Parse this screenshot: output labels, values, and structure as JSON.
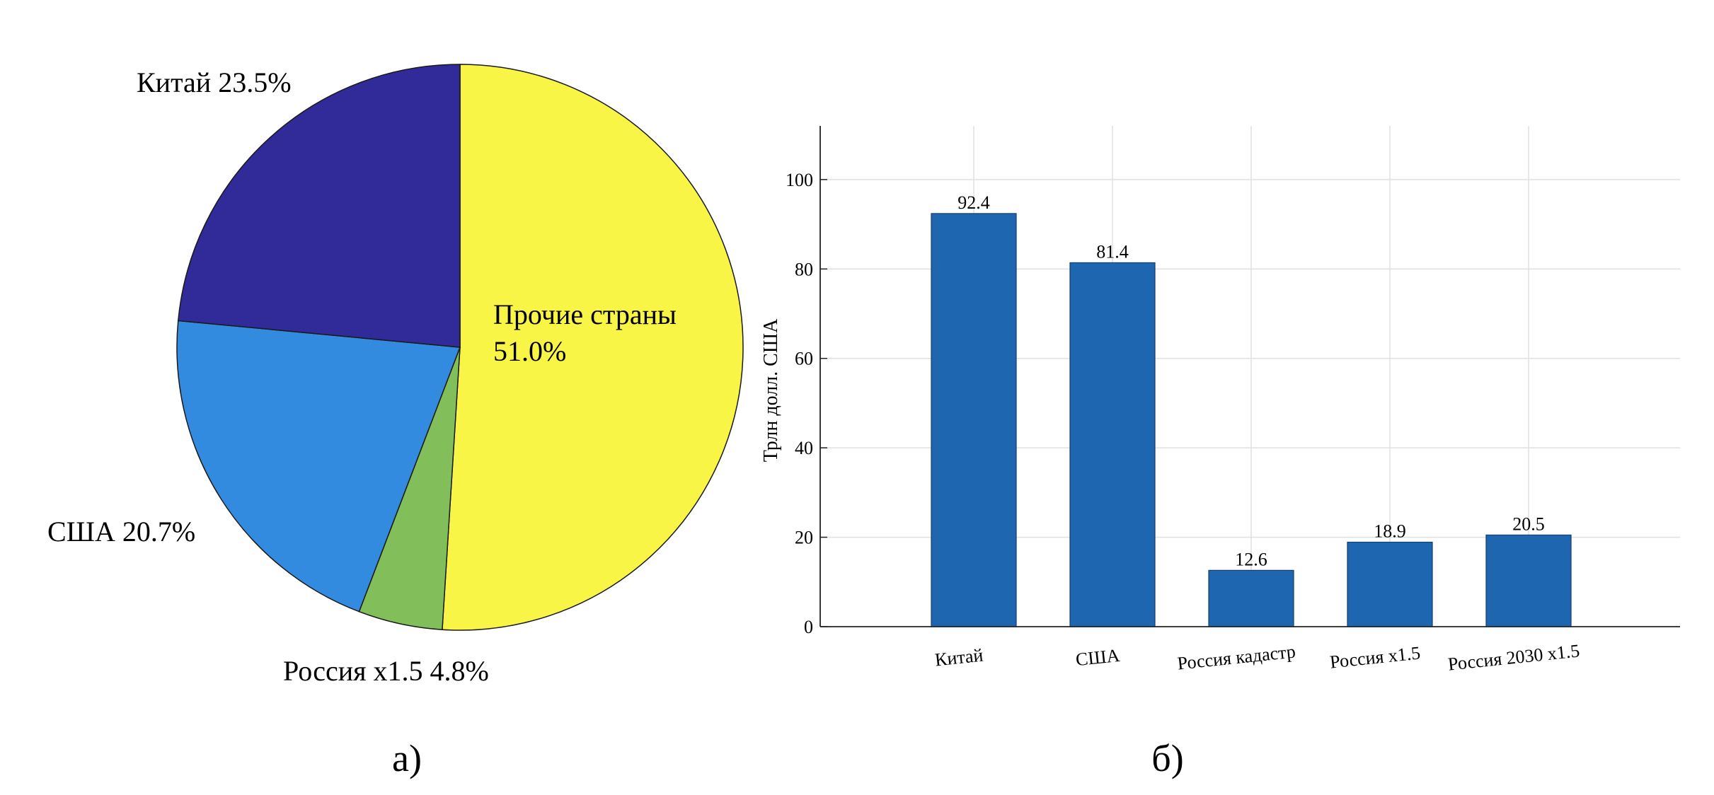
{
  "chart_data": [
    {
      "type": "pie",
      "panel_label": "а)",
      "slices": [
        {
          "label": "Прочие страны",
          "value": 51.0,
          "percent_text": "51.0%",
          "color": "#F8F547"
        },
        {
          "label": "Россия x1.5",
          "value": 4.8,
          "percent_text": "4.8%",
          "color": "#82BF5A"
        },
        {
          "label": "США",
          "value": 20.7,
          "percent_text": "20.7%",
          "color": "#338BE0"
        },
        {
          "label": "Китай",
          "value": 23.5,
          "percent_text": "23.5%",
          "color": "#312A99"
        }
      ]
    },
    {
      "type": "bar",
      "panel_label": "б)",
      "ylabel": "Трлн долл. США",
      "categories": [
        "Китай",
        "США",
        "Россия кадастр",
        "Россия x1.5",
        "Россия 2030 x1.5"
      ],
      "values": [
        92.4,
        81.4,
        12.6,
        18.9,
        20.5
      ],
      "value_labels": [
        "92.4",
        "81.4",
        "12.6",
        "18.9",
        "20.5"
      ],
      "ylim": [
        0,
        112
      ],
      "yticks": [
        0,
        20,
        40,
        60,
        80,
        100
      ],
      "grid": true,
      "bar_color": "#1F66B1"
    }
  ]
}
